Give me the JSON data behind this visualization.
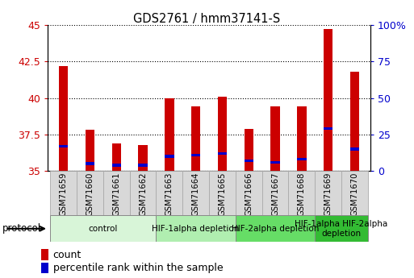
{
  "title": "GDS2761 / hmm37141-S",
  "samples": [
    "GSM71659",
    "GSM71660",
    "GSM71661",
    "GSM71662",
    "GSM71663",
    "GSM71664",
    "GSM71665",
    "GSM71666",
    "GSM71667",
    "GSM71668",
    "GSM71669",
    "GSM71670"
  ],
  "count_values": [
    42.2,
    37.8,
    36.9,
    36.8,
    40.0,
    39.4,
    40.1,
    37.9,
    39.4,
    39.4,
    44.7,
    41.8
  ],
  "percentile_values": [
    17,
    5,
    4,
    4,
    10,
    11,
    12,
    7,
    6,
    8,
    29,
    15
  ],
  "ymin": 35,
  "ymax": 45,
  "yticks_left": [
    35,
    37.5,
    40,
    42.5,
    45
  ],
  "yticks_right": [
    0,
    25,
    50,
    75,
    100
  ],
  "bar_color": "#cc0000",
  "blue_color": "#0000cc",
  "protocol_groups": [
    {
      "label": "control",
      "start": 0,
      "end": 3,
      "color": "#d8f5d8"
    },
    {
      "label": "HIF-1alpha depletion",
      "start": 4,
      "end": 6,
      "color": "#b0eeb0"
    },
    {
      "label": "HIF-2alpha depletion",
      "start": 7,
      "end": 9,
      "color": "#66dd66"
    },
    {
      "label": "HIF-1alpha HIF-2alpha\ndepletion",
      "start": 10,
      "end": 11,
      "color": "#33bb33"
    }
  ],
  "bar_width": 0.35,
  "blue_bar_height": 0.18,
  "left_tick_color": "#cc0000",
  "right_tick_color": "#0000cc",
  "legend_count_label": "count",
  "legend_pct_label": "percentile rank within the sample",
  "sample_box_color": "#d8d8d8",
  "sample_box_edge": "#aaaaaa"
}
